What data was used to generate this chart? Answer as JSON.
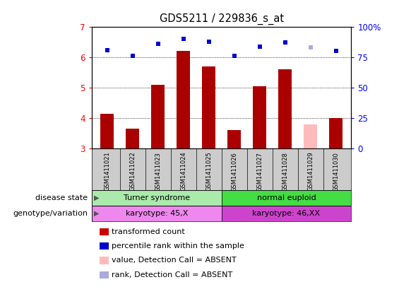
{
  "title": "GDS5211 / 229836_s_at",
  "samples": [
    "GSM1411021",
    "GSM1411022",
    "GSM1411023",
    "GSM1411024",
    "GSM1411025",
    "GSM1411026",
    "GSM1411027",
    "GSM1411028",
    "GSM1411029",
    "GSM1411030"
  ],
  "bar_values": [
    4.15,
    3.65,
    5.1,
    6.2,
    5.7,
    3.6,
    5.05,
    5.6,
    3.78,
    4.0
  ],
  "bar_colors": [
    "#aa0000",
    "#aa0000",
    "#aa0000",
    "#aa0000",
    "#aa0000",
    "#aa0000",
    "#aa0000",
    "#aa0000",
    "#ffbbbb",
    "#aa0000"
  ],
  "rank_values": [
    81,
    76,
    86,
    90,
    88,
    76,
    84,
    87,
    83,
    80
  ],
  "rank_absent": [
    false,
    false,
    false,
    false,
    false,
    false,
    false,
    false,
    true,
    false
  ],
  "bar_absent": [
    false,
    false,
    false,
    false,
    false,
    false,
    false,
    false,
    true,
    false
  ],
  "ylim_left": [
    3,
    7
  ],
  "ylim_right": [
    0,
    100
  ],
  "yticks_left": [
    3,
    4,
    5,
    6,
    7
  ],
  "yticks_right": [
    0,
    25,
    50,
    75,
    100
  ],
  "yticklabels_right": [
    "0",
    "25",
    "50",
    "75",
    "100%"
  ],
  "disease_state_groups": [
    {
      "label": "Turner syndrome",
      "start": 0,
      "end": 5,
      "color": "#aaeaaa"
    },
    {
      "label": "normal euploid",
      "start": 5,
      "end": 10,
      "color": "#44dd44"
    }
  ],
  "genotype_groups": [
    {
      "label": "karyotype: 45,X",
      "start": 0,
      "end": 5,
      "color": "#ee88ee"
    },
    {
      "label": "karyotype: 46,XX",
      "start": 5,
      "end": 10,
      "color": "#cc44cc"
    }
  ],
  "left_labels": [
    "disease state",
    "genotype/variation"
  ],
  "legend_items": [
    {
      "color": "#cc0000",
      "label": "transformed count"
    },
    {
      "color": "#0000cc",
      "label": "percentile rank within the sample"
    },
    {
      "color": "#ffbbbb",
      "label": "value, Detection Call = ABSENT"
    },
    {
      "color": "#aaaadd",
      "label": "rank, Detection Call = ABSENT"
    }
  ],
  "bar_bottom": 3,
  "grid_lines": [
    4.0,
    5.0,
    6.0
  ],
  "sample_bg": "#cccccc",
  "plot_bg": "#ffffff"
}
